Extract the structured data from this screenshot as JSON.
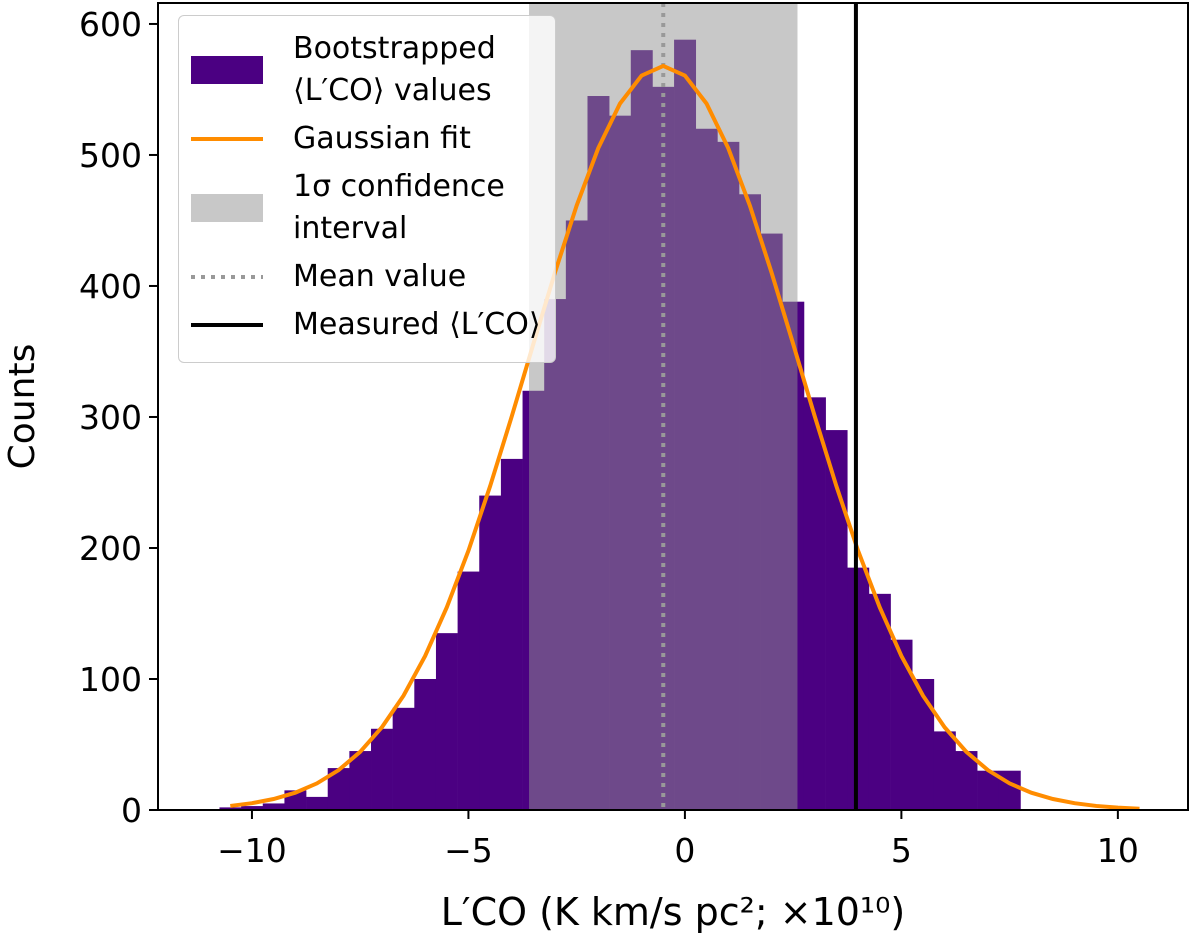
{
  "chart_data": {
    "type": "histogram",
    "xlabel": "L′CO (K km/s pc²;  ×10¹⁰)",
    "ylabel": "Counts",
    "xlim": [
      -12.17,
      11.62
    ],
    "ylim": [
      0,
      616
    ],
    "xticks": [
      {
        "value": -10,
        "label": "−10"
      },
      {
        "value": -5,
        "label": "−5"
      },
      0,
      5,
      10
    ],
    "yticks": [
      0,
      100,
      200,
      300,
      400,
      500,
      600
    ],
    "legend": "upper left",
    "histogram": {
      "name": "Bootstrapped ⟨L′CO⟩ values",
      "color": "#4b0082",
      "bins": [
        -10.75,
        -10.25,
        -9.75,
        -9.25,
        -8.75,
        -8.25,
        -7.75,
        -7.25,
        -6.75,
        -6.25,
        -5.75,
        -5.25,
        -4.75,
        -4.25,
        -3.75,
        -3.25,
        -2.75,
        -2.25,
        -1.75,
        -1.25,
        -0.75,
        -0.25,
        0.25,
        0.75,
        1.25,
        1.75,
        2.25,
        2.75,
        3.25,
        3.75,
        4.25,
        4.75,
        5.25,
        5.75,
        6.25,
        6.75,
        7.25,
        7.75
      ],
      "values": [
        2,
        3,
        5,
        15,
        10,
        32,
        45,
        62,
        78,
        100,
        135,
        182,
        240,
        268,
        320,
        390,
        450,
        545,
        530,
        580,
        552,
        588,
        520,
        510,
        470,
        440,
        388,
        315,
        290,
        185,
        165,
        130,
        100,
        60,
        45,
        30,
        30
      ]
    },
    "fit": {
      "name": "Gaussian fit",
      "color": "#ff8c00",
      "x": [
        -10.5,
        -10,
        -9.5,
        -9,
        -8.5,
        -8,
        -7.5,
        -7,
        -6.5,
        -6,
        -5.5,
        -5,
        -4.5,
        -4,
        -3.5,
        -3,
        -2.5,
        -2,
        -1.5,
        -1,
        -0.5,
        0,
        0.5,
        1,
        1.5,
        2,
        2.5,
        3,
        3.5,
        4,
        4.5,
        5,
        5.5,
        6,
        6.5,
        7,
        7.5,
        8,
        8.5,
        9,
        9.5,
        10,
        10.5
      ],
      "values": [
        3.1,
        5.2,
        8.4,
        13.2,
        20.3,
        30.4,
        44.4,
        63.1,
        87.2,
        117.6,
        154.7,
        197.9,
        247.1,
        300.4,
        355.8,
        410.4,
        461.4,
        505.3,
        539.2,
        560.6,
        568,
        560.6,
        539.2,
        505.3,
        461.4,
        410.4,
        355.8,
        300.4,
        247.1,
        197.9,
        154.7,
        117.6,
        87.2,
        63.1,
        44.4,
        30.4,
        20.3,
        13.2,
        8.4,
        5.2,
        3.1,
        1.8,
        1.0
      ]
    },
    "interval": {
      "name": "1σ confidence interval",
      "color": "#919191",
      "range": [
        -3.6,
        2.6
      ]
    },
    "mean": {
      "name": "Mean value",
      "color": "#999999",
      "value": -0.5
    },
    "measured": {
      "name": "Measured ⟨L′CO⟩",
      "color": "#000000",
      "value": 3.95
    }
  }
}
